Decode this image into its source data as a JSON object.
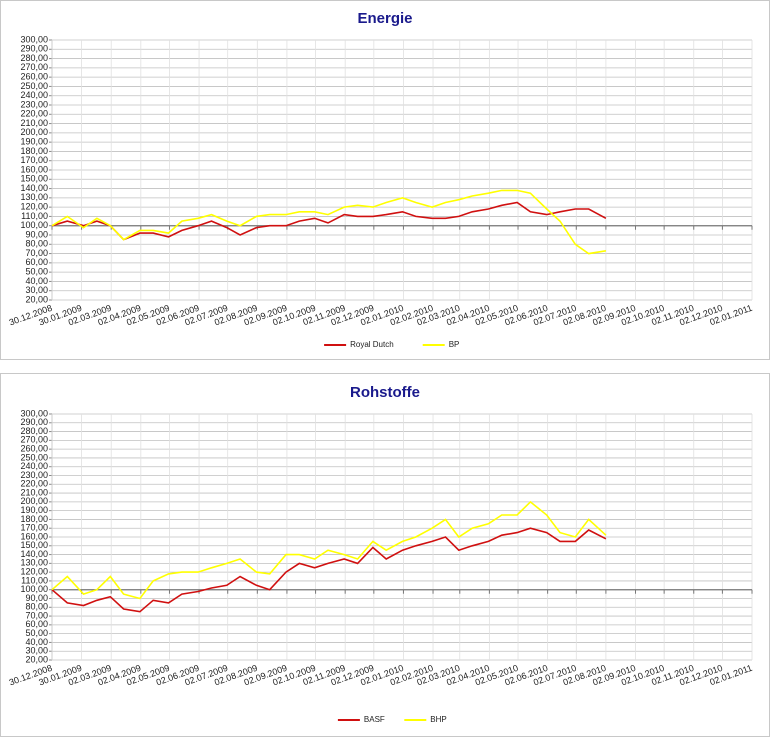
{
  "chart_data": [
    {
      "type": "line",
      "title": "Energie",
      "x": [
        "30.12.2008",
        "15.01.2009",
        "01.02.2009",
        "15.02.2009",
        "01.03.2009",
        "15.03.2009",
        "01.04.2009",
        "15.04.2009",
        "01.05.2009",
        "15.05.2009",
        "01.06.2009",
        "15.06.2009",
        "01.07.2009",
        "15.07.2009",
        "01.08.2009",
        "15.08.2009",
        "01.09.2009",
        "15.09.2009",
        "01.10.2009",
        "15.10.2009",
        "01.11.2009",
        "15.11.2009",
        "01.12.2009",
        "15.12.2009",
        "01.01.2010",
        "15.01.2010",
        "01.02.2010",
        "15.02.2010",
        "01.03.2010",
        "15.03.2010",
        "01.04.2010",
        "15.04.2010",
        "01.05.2010",
        "15.05.2010",
        "01.06.2010",
        "15.06.2010",
        "01.07.2010",
        "15.07.2010",
        "02.08.2010"
      ],
      "series": [
        {
          "name": "Royal Dutch",
          "color": "#d01010",
          "values": [
            100,
            105,
            100,
            105,
            100,
            85,
            92,
            92,
            88,
            95,
            100,
            105,
            98,
            90,
            98,
            100,
            100,
            105,
            108,
            103,
            112,
            110,
            110,
            112,
            115,
            110,
            108,
            108,
            110,
            115,
            118,
            122,
            125,
            115,
            112,
            115,
            118,
            118,
            108
          ]
        },
        {
          "name": "BP",
          "color": "#ffff00",
          "values": [
            100,
            110,
            98,
            108,
            100,
            85,
            95,
            95,
            92,
            105,
            108,
            112,
            105,
            100,
            110,
            112,
            112,
            115,
            115,
            112,
            120,
            122,
            120,
            125,
            130,
            125,
            120,
            125,
            128,
            132,
            135,
            138,
            138,
            135,
            118,
            105,
            80,
            70,
            73
          ]
        }
      ],
      "xlim": [
        "30.12.2008",
        "02.01.2011"
      ],
      "xticks": [
        "30.12.2008",
        "30.01.2009",
        "02.03.2009",
        "02.04.2009",
        "02.05.2009",
        "02.06.2009",
        "02.07.2009",
        "02.08.2009",
        "02.09.2009",
        "02.10.2009",
        "02.11.2009",
        "02.12.2009",
        "02.01.2010",
        "02.02.2010",
        "02.03.2010",
        "02.04.2010",
        "02.05.2010",
        "02.06.2010",
        "02.07.2010",
        "02.08.2010",
        "02.09.2010",
        "02.10.2010",
        "02.11.2010",
        "02.12.2010",
        "02.01.2011"
      ],
      "ylim": [
        20,
        300
      ],
      "yticks": [
        {
          "value": 20,
          "label": "20,00"
        },
        {
          "value": 30,
          "label": "30,00"
        },
        {
          "value": 40,
          "label": "40,00"
        },
        {
          "value": 50,
          "label": "50,00"
        },
        {
          "value": 60,
          "label": "60,00"
        },
        {
          "value": 70,
          "label": "70,00"
        },
        {
          "value": 80,
          "label": "80,00"
        },
        {
          "value": 90,
          "label": "90,00"
        },
        {
          "value": 100,
          "label": "100,00"
        },
        {
          "value": 110,
          "label": "110,00"
        },
        {
          "value": 120,
          "label": "120,00"
        },
        {
          "value": 130,
          "label": "130,00"
        },
        {
          "value": 140,
          "label": "140,00"
        },
        {
          "value": 150,
          "label": "150,00"
        },
        {
          "value": 160,
          "label": "160,00"
        },
        {
          "value": 170,
          "label": "170,00"
        },
        {
          "value": 180,
          "label": "180,00"
        },
        {
          "value": 190,
          "label": "190,00"
        },
        {
          "value": 200,
          "label": "200,00"
        },
        {
          "value": 210,
          "label": "210,00"
        },
        {
          "value": 220,
          "label": "220,00"
        },
        {
          "value": 230,
          "label": "230,00"
        },
        {
          "value": 240,
          "label": "240,00"
        },
        {
          "value": 250,
          "label": "250,00"
        },
        {
          "value": 260,
          "label": "260,00"
        },
        {
          "value": 270,
          "label": "270,00"
        },
        {
          "value": 280,
          "label": "280,00"
        },
        {
          "value": 290,
          "label": "290,00"
        },
        {
          "value": 300,
          "label": "300,00"
        }
      ],
      "xaxis_crossing": 100,
      "grid": true,
      "legend": "bottom"
    },
    {
      "type": "line",
      "title": "Rohstoffe",
      "x": [
        "30.12.2008",
        "15.01.2009",
        "01.02.2009",
        "15.02.2009",
        "01.03.2009",
        "15.03.2009",
        "01.04.2009",
        "15.04.2009",
        "01.05.2009",
        "15.05.2009",
        "01.06.2009",
        "15.06.2009",
        "01.07.2009",
        "15.07.2009",
        "01.08.2009",
        "15.08.2009",
        "01.09.2009",
        "15.09.2009",
        "01.10.2009",
        "15.10.2009",
        "01.11.2009",
        "15.11.2009",
        "01.12.2009",
        "15.12.2009",
        "01.01.2010",
        "15.01.2010",
        "01.02.2010",
        "15.02.2010",
        "01.03.2010",
        "15.03.2010",
        "01.04.2010",
        "15.04.2010",
        "01.05.2010",
        "15.05.2010",
        "01.06.2010",
        "15.06.2010",
        "01.07.2010",
        "15.07.2010",
        "02.08.2010"
      ],
      "series": [
        {
          "name": "BASF",
          "color": "#d01010",
          "values": [
            100,
            85,
            82,
            88,
            92,
            78,
            75,
            88,
            85,
            95,
            98,
            102,
            105,
            115,
            105,
            100,
            120,
            130,
            125,
            130,
            135,
            130,
            148,
            135,
            145,
            150,
            155,
            160,
            145,
            150,
            155,
            162,
            165,
            170,
            165,
            155,
            155,
            168,
            158
          ]
        },
        {
          "name": "BHP",
          "color": "#ffff00",
          "values": [
            100,
            115,
            95,
            100,
            115,
            95,
            90,
            110,
            118,
            120,
            120,
            125,
            130,
            135,
            120,
            118,
            140,
            140,
            135,
            145,
            140,
            135,
            155,
            145,
            155,
            160,
            170,
            180,
            160,
            170,
            175,
            185,
            185,
            200,
            185,
            165,
            160,
            180,
            162
          ]
        }
      ],
      "xlim": [
        "30.12.2008",
        "02.01.2011"
      ],
      "xticks": [
        "30.12.2008",
        "30.01.2009",
        "02.03.2009",
        "02.04.2009",
        "02.05.2009",
        "02.06.2009",
        "02.07.2009",
        "02.08.2009",
        "02.09.2009",
        "02.10.2009",
        "02.11.2009",
        "02.12.2009",
        "02.01.2010",
        "02.02.2010",
        "02.03.2010",
        "02.04.2010",
        "02.05.2010",
        "02.06.2010",
        "02.07.2010",
        "02.08.2010",
        "02.09.2010",
        "02.10.2010",
        "02.11.2010",
        "02.12.2010",
        "02.01.2011"
      ],
      "ylim": [
        20,
        300
      ],
      "yticks": [
        {
          "value": 20,
          "label": "20,00"
        },
        {
          "value": 30,
          "label": "30,00"
        },
        {
          "value": 40,
          "label": "40,00"
        },
        {
          "value": 50,
          "label": "50,00"
        },
        {
          "value": 60,
          "label": "60,00"
        },
        {
          "value": 70,
          "label": "70,00"
        },
        {
          "value": 80,
          "label": "80,00"
        },
        {
          "value": 90,
          "label": "90,00"
        },
        {
          "value": 100,
          "label": "100,00"
        },
        {
          "value": 110,
          "label": "110,00"
        },
        {
          "value": 120,
          "label": "120,00"
        },
        {
          "value": 130,
          "label": "130,00"
        },
        {
          "value": 140,
          "label": "140,00"
        },
        {
          "value": 150,
          "label": "150,00"
        },
        {
          "value": 160,
          "label": "160,00"
        },
        {
          "value": 170,
          "label": "170,00"
        },
        {
          "value": 180,
          "label": "180,00"
        },
        {
          "value": 190,
          "label": "190,00"
        },
        {
          "value": 200,
          "label": "200,00"
        },
        {
          "value": 210,
          "label": "210,00"
        },
        {
          "value": 220,
          "label": "220,00"
        },
        {
          "value": 230,
          "label": "230,00"
        },
        {
          "value": 240,
          "label": "240,00"
        },
        {
          "value": 250,
          "label": "250,00"
        },
        {
          "value": 260,
          "label": "260,00"
        },
        {
          "value": 270,
          "label": "270,00"
        },
        {
          "value": 280,
          "label": "280,00"
        },
        {
          "value": 290,
          "label": "290,00"
        },
        {
          "value": 300,
          "label": "300,00"
        }
      ],
      "xaxis_crossing": 100,
      "grid": true,
      "legend": "bottom"
    }
  ]
}
